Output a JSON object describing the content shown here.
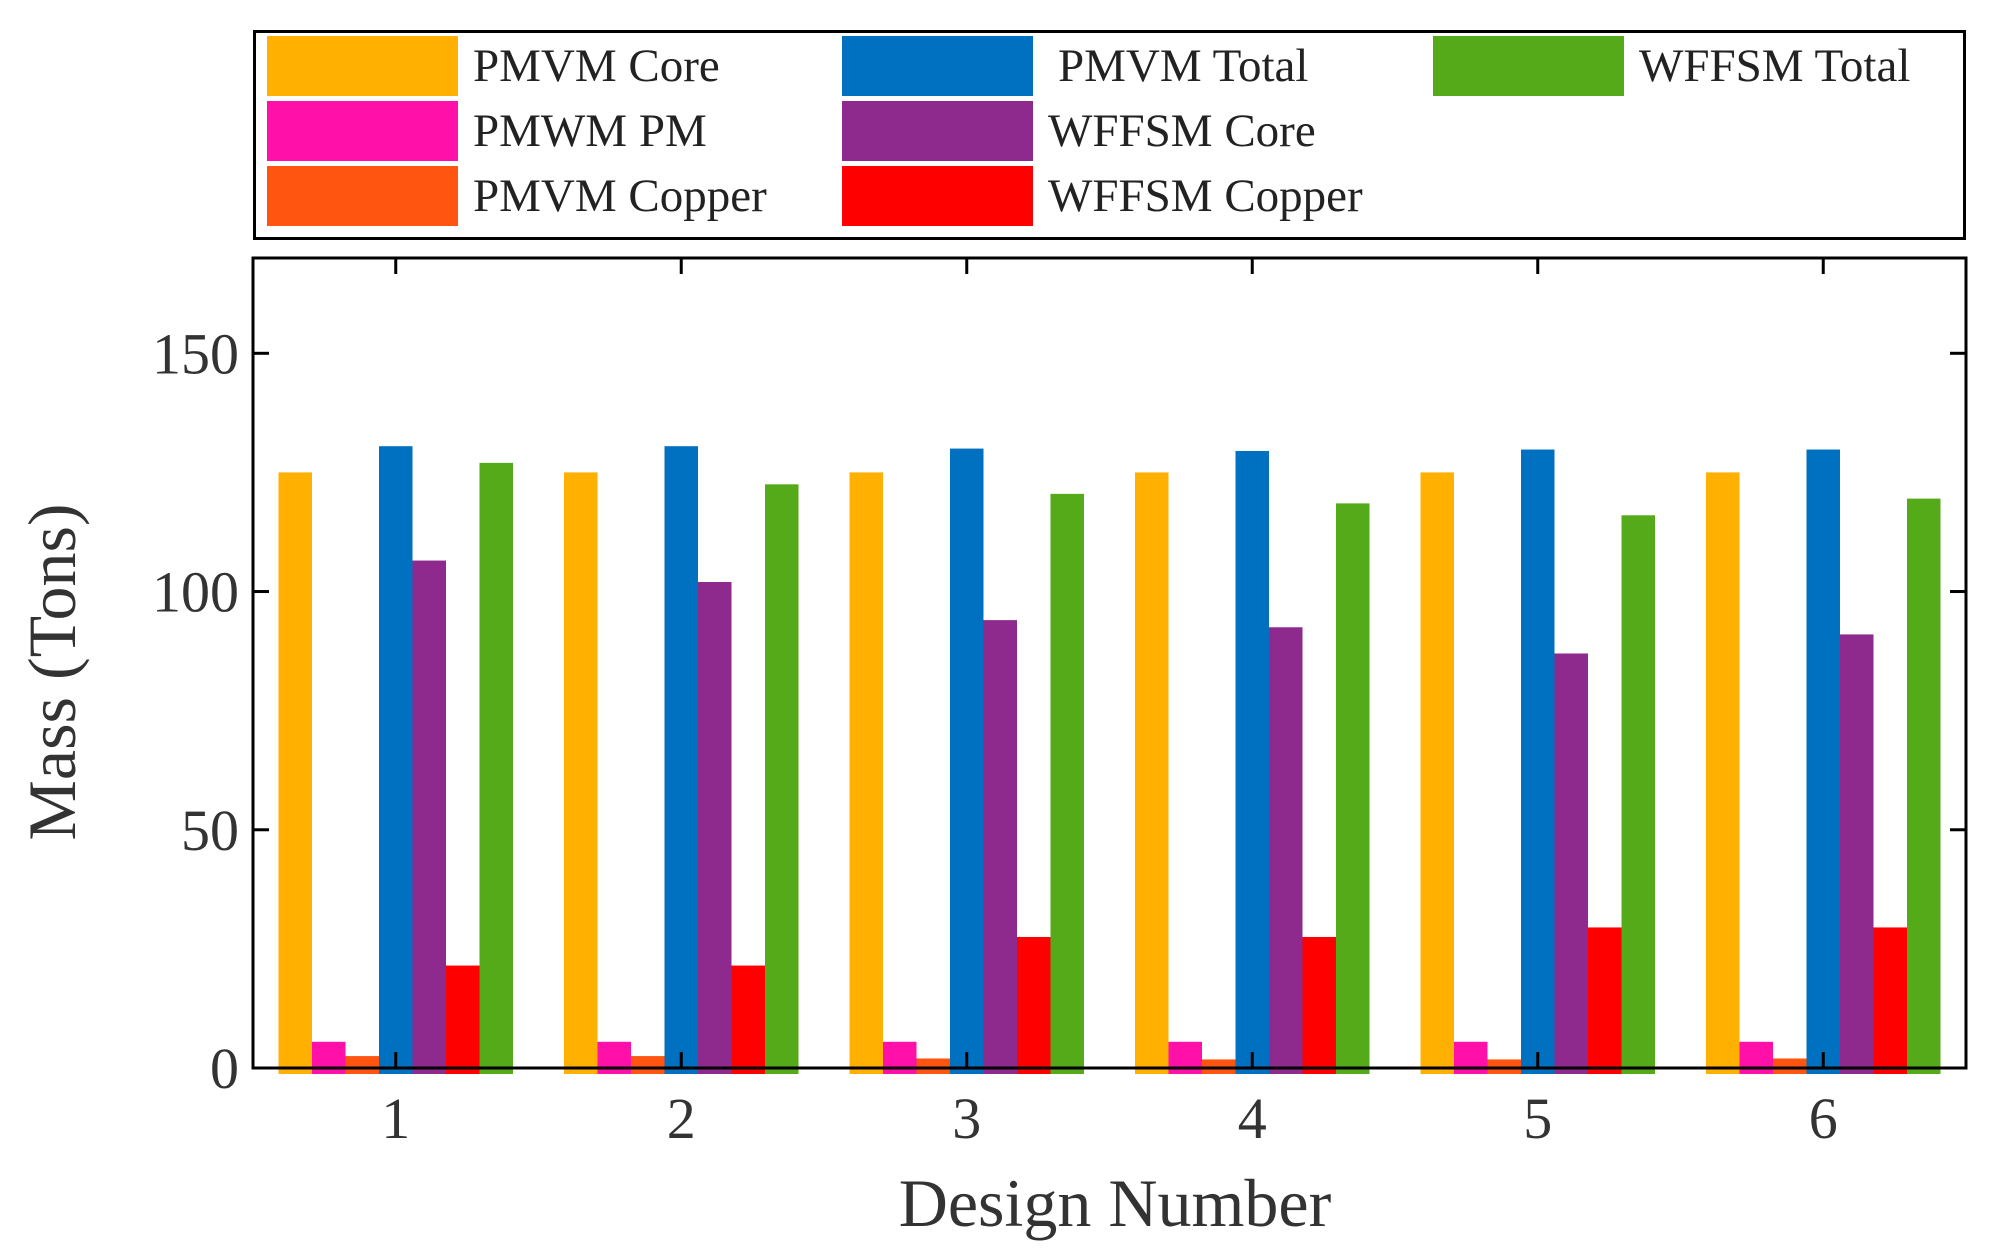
{
  "chart_data": {
    "type": "bar",
    "xlabel": "Design Number",
    "ylabel": "Mass (Tons)",
    "categories": [
      "1",
      "2",
      "3",
      "4",
      "5",
      "6"
    ],
    "ylim": [
      0,
      170
    ],
    "yticks": [
      0,
      50,
      100,
      150
    ],
    "ytick_labels": [
      "0",
      "50",
      "100",
      "150"
    ],
    "legend_position": "top",
    "series": [
      {
        "name": "PMVM Core",
        "color": "#FFB000",
        "values": [
          125,
          125,
          125,
          125,
          125,
          125
        ]
      },
      {
        "name": "PMWM PM",
        "color": "#FF10A8",
        "values": [
          5.5,
          5.5,
          5.5,
          5.5,
          5.5,
          5.5
        ]
      },
      {
        "name": "PMVM Copper",
        "color": "#FF5510",
        "values": [
          2.5,
          2.5,
          2.0,
          1.8,
          1.8,
          2.0
        ]
      },
      {
        "name": "PMVM Total",
        "color": "#0070C0",
        "values": [
          130.5,
          130.5,
          130,
          129.5,
          129.8,
          129.8
        ]
      },
      {
        "name": "WFFSM Core",
        "color": "#8E2A8E",
        "values": [
          106.5,
          102,
          94,
          92.5,
          87,
          91
        ]
      },
      {
        "name": "WFFSM Copper",
        "color": "#FF0000",
        "values": [
          21.5,
          21.5,
          27.5,
          27.5,
          29.5,
          29.5
        ]
      },
      {
        "name": "WFFSM Total",
        "color": "#55AA1A",
        "values": [
          127,
          122.5,
          120.5,
          118.5,
          116,
          119.5
        ]
      }
    ]
  },
  "legend": {
    "items": [
      {
        "label": "PMVM Core",
        "color": "#FFB000"
      },
      {
        "label": "PMVM Total",
        "color": "#0070C0"
      },
      {
        "label": "WFFSM Total",
        "color": "#55AA1A"
      },
      {
        "label": "PMWM PM",
        "color": "#FF10A8"
      },
      {
        "label": "WFFSM Core",
        "color": "#8E2A8E"
      },
      {
        "label": "PMVM Copper",
        "color": "#FF5510"
      },
      {
        "label": "WFFSM Copper",
        "color": "#FF0000"
      }
    ]
  }
}
